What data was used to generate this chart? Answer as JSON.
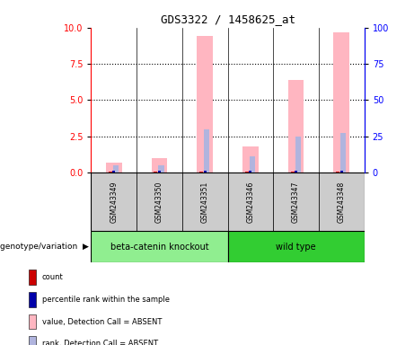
{
  "title": "GDS3322 / 1458625_at",
  "samples": [
    "GSM243349",
    "GSM243350",
    "GSM243351",
    "GSM243346",
    "GSM243347",
    "GSM243348"
  ],
  "groups": [
    "beta-catenin knockout",
    "beta-catenin knockout",
    "beta-catenin knockout",
    "wild type",
    "wild type",
    "wild type"
  ],
  "group_colors": {
    "beta-catenin knockout": "#90EE90",
    "wild type": "#32CD32"
  },
  "value_absent": [
    0.7,
    1.0,
    9.4,
    1.8,
    6.4,
    9.7
  ],
  "rank_absent_pct": [
    5,
    5,
    30,
    11,
    25,
    27
  ],
  "count": [
    0.05,
    0.05,
    0.05,
    0.05,
    0.05,
    0.05
  ],
  "percentile_rank_pct": [
    1,
    1,
    1,
    1,
    1,
    1
  ],
  "ylim_left": [
    0,
    10
  ],
  "ylim_right": [
    0,
    100
  ],
  "yticks_left": [
    0,
    2.5,
    5.0,
    7.5,
    10
  ],
  "yticks_right": [
    0,
    25,
    50,
    75,
    100
  ],
  "bar_color_value_absent": "#FFB6C1",
  "bar_color_rank_absent": "#B0B4DE",
  "bar_color_count": "#CC0000",
  "bar_color_percentile": "#0000AA",
  "legend": [
    {
      "label": "count",
      "color": "#CC0000"
    },
    {
      "label": "percentile rank within the sample",
      "color": "#0000AA"
    },
    {
      "label": "value, Detection Call = ABSENT",
      "color": "#FFB6C1"
    },
    {
      "label": "rank, Detection Call = ABSENT",
      "color": "#B0B4DE"
    }
  ],
  "background_color": "#ffffff",
  "sample_box_color": "#cccccc",
  "grid_dotted_vals": [
    2.5,
    5.0,
    7.5
  ]
}
